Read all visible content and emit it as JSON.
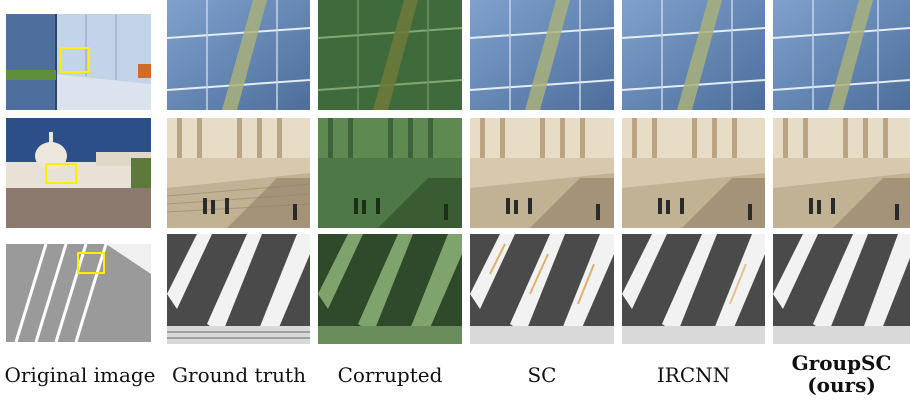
{
  "columns": [
    {
      "label": "Original image",
      "bold": false
    },
    {
      "label": "Ground truth",
      "bold": false
    },
    {
      "label": "Corrupted",
      "bold": false
    },
    {
      "label": "SC",
      "bold": false
    },
    {
      "label": "IRCNN",
      "bold": false
    },
    {
      "label": "GroupSC",
      "label2": "(ours)",
      "bold": true
    }
  ],
  "colors": {
    "zoom_box": "#ffee00",
    "glass_blue": "#5a7fae",
    "corrupted_green": "#3d6a36",
    "stone": "#d8c9ae",
    "sky": "#2c4f8a",
    "building_white": "#f2f2f2"
  }
}
